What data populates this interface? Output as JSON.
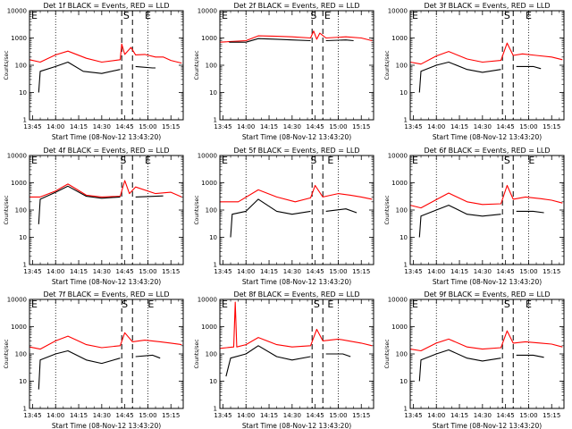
{
  "figure": {
    "xlabel": "Start Time (08-Nov-12 13:43:20)",
    "ylabel": "Counts/sec",
    "x_tick_labels": [
      "13:45",
      "14:00",
      "14:15",
      "14:30",
      "14:45",
      "15:00",
      "15:15"
    ],
    "y_tick_labels": [
      "1",
      "10",
      "100",
      "1000",
      "10000"
    ],
    "marker_labels": {
      "start": "S",
      "end": "E"
    },
    "colors": {
      "events": "#000000",
      "lld": "#ff0000",
      "axes": "#000000",
      "background": "#ffffff"
    }
  },
  "chart_data": [
    {
      "type": "line",
      "title": "Det 1f BLACK = Events, RED = LLD",
      "xlabel": "Start Time (08-Nov-12 13:43:20)",
      "ylabel": "Counts/sec",
      "x_range": [
        "13:43",
        "15:23"
      ],
      "ylim": [
        1,
        10000
      ],
      "log_y": true,
      "dotted_x": [
        "14:00",
        "15:00"
      ],
      "dashed_x": [
        "14:43",
        "14:50"
      ],
      "left_marker": "E",
      "markers": [
        {
          "label": "S",
          "x": "14:46"
        },
        {
          "label": "E",
          "x": "15:00"
        }
      ],
      "series": [
        {
          "name": "LLD",
          "color": "#ff0000",
          "x": [
            "13:43",
            "13:50",
            "14:00",
            "14:08",
            "14:20",
            "14:30",
            "14:42",
            "14:43",
            "14:45",
            "14:49",
            "14:52",
            "14:58",
            "15:05",
            "15:10",
            "15:15",
            "15:22"
          ],
          "values": [
            160,
            130,
            240,
            330,
            180,
            130,
            160,
            600,
            250,
            450,
            240,
            250,
            200,
            200,
            150,
            120
          ]
        },
        {
          "name": "Events",
          "x": [
            "13:49",
            "13:50",
            "14:00",
            "14:08",
            "14:18",
            "14:30",
            "14:42"
          ],
          "values": [
            10,
            60,
            90,
            130,
            60,
            50,
            70
          ]
        },
        {
          "name": "Events",
          "x": [
            "14:52",
            "15:03",
            "15:05"
          ],
          "values": [
            90,
            80,
            80
          ]
        }
      ]
    },
    {
      "type": "line",
      "title": "Det 2f BLACK = Events, RED = LLD",
      "xlabel": "Start Time (08-Nov-12 13:43:20)",
      "ylabel": "Counts/sec",
      "x_range": [
        "13:43",
        "15:23"
      ],
      "ylim": [
        1,
        10000
      ],
      "log_y": true,
      "dotted_x": [
        "14:00",
        "15:00"
      ],
      "dashed_x": [
        "14:43",
        "14:50"
      ],
      "left_marker": "E",
      "markers": [
        {
          "label": "S",
          "x": "14:44"
        },
        {
          "label": "E",
          "x": "14:53"
        }
      ],
      "series": [
        {
          "name": "LLD",
          "color": "#ff0000",
          "x": [
            "13:43",
            "14:00",
            "14:08",
            "14:20",
            "14:30",
            "14:42",
            "14:44",
            "14:46",
            "14:48",
            "14:52",
            "15:05",
            "15:15",
            "15:22"
          ],
          "values": [
            700,
            800,
            1200,
            1150,
            1100,
            1000,
            1800,
            900,
            1500,
            1000,
            1100,
            1000,
            800
          ]
        },
        {
          "name": "Events",
          "x": [
            "13:49",
            "14:00",
            "14:08",
            "14:20",
            "14:30",
            "14:42"
          ],
          "values": [
            700,
            700,
            950,
            900,
            850,
            800
          ]
        },
        {
          "name": "Events",
          "x": [
            "14:52",
            "15:05",
            "15:10"
          ],
          "values": [
            800,
            850,
            800
          ]
        }
      ]
    },
    {
      "type": "line",
      "title": "Det 3f BLACK = Events, RED = LLD",
      "xlabel": "Start Time (08-Nov-12 13:43:20)",
      "ylabel": "Counts/sec",
      "x_range": [
        "13:43",
        "15:23"
      ],
      "ylim": [
        1,
        10000
      ],
      "log_y": true,
      "dotted_x": [
        "14:00",
        "15:00"
      ],
      "dashed_x": [
        "14:43",
        "14:50"
      ],
      "left_marker": "E",
      "markers": [
        {
          "label": "S",
          "x": "14:46"
        },
        {
          "label": "E",
          "x": "15:00"
        }
      ],
      "series": [
        {
          "name": "LLD",
          "color": "#ff0000",
          "x": [
            "13:43",
            "13:50",
            "14:00",
            "14:08",
            "14:20",
            "14:30",
            "14:42",
            "14:46",
            "14:50",
            "14:56",
            "15:05",
            "15:15",
            "15:22"
          ],
          "values": [
            130,
            110,
            220,
            320,
            170,
            130,
            150,
            650,
            230,
            260,
            230,
            200,
            160
          ]
        },
        {
          "name": "Events",
          "x": [
            "13:49",
            "13:50",
            "14:00",
            "14:08",
            "14:20",
            "14:30",
            "14:42"
          ],
          "values": [
            10,
            60,
            100,
            130,
            70,
            55,
            70
          ]
        },
        {
          "name": "Events",
          "x": [
            "14:52",
            "15:03",
            "15:08"
          ],
          "values": [
            90,
            90,
            75
          ]
        }
      ]
    },
    {
      "type": "line",
      "title": "Det 4f BLACK = Events, RED = LLD",
      "xlabel": "Start Time (08-Nov-12 13:43:20)",
      "ylabel": "Counts/sec",
      "x_range": [
        "13:43",
        "15:23"
      ],
      "ylim": [
        1,
        10000
      ],
      "log_y": true,
      "dotted_x": [
        "14:00",
        "15:00"
      ],
      "dashed_x": [
        "14:43",
        "14:50"
      ],
      "left_marker": "E",
      "markers": [
        {
          "label": "S",
          "x": "14:44"
        },
        {
          "label": "E",
          "x": "15:00"
        }
      ],
      "series": [
        {
          "name": "LLD",
          "color": "#ff0000",
          "x": [
            "13:43",
            "13:50",
            "14:00",
            "14:08",
            "14:20",
            "14:30",
            "14:42",
            "14:45",
            "14:48",
            "14:52",
            "15:05",
            "15:15",
            "15:22"
          ],
          "values": [
            300,
            300,
            500,
            900,
            350,
            300,
            320,
            1200,
            400,
            700,
            400,
            450,
            300
          ]
        },
        {
          "name": "Events",
          "x": [
            "13:49",
            "13:50",
            "14:00",
            "14:08",
            "14:20",
            "14:30",
            "14:42"
          ],
          "values": [
            30,
            250,
            450,
            750,
            320,
            270,
            300
          ]
        },
        {
          "name": "Events",
          "x": [
            "14:52",
            "15:05",
            "15:10"
          ],
          "values": [
            300,
            320,
            330
          ]
        }
      ]
    },
    {
      "type": "line",
      "title": "Det 5f BLACK = Events, RED = LLD",
      "xlabel": "Start Time (08-Nov-12 13:43:20)",
      "ylabel": "Counts/sec",
      "x_range": [
        "13:43",
        "15:23"
      ],
      "ylim": [
        1,
        10000
      ],
      "log_y": true,
      "dotted_x": [
        "14:00",
        "15:00"
      ],
      "dashed_x": [
        "14:43",
        "14:50"
      ],
      "left_marker": "E",
      "markers": [
        {
          "label": "S",
          "x": "14:44"
        },
        {
          "label": "E",
          "x": "14:55"
        }
      ],
      "series": [
        {
          "name": "LLD",
          "color": "#ff0000",
          "x": [
            "13:43",
            "13:55",
            "14:08",
            "14:20",
            "14:32",
            "14:42",
            "14:45",
            "14:50",
            "15:00",
            "15:08",
            "15:15",
            "15:22"
          ],
          "values": [
            200,
            200,
            550,
            300,
            200,
            280,
            800,
            300,
            400,
            350,
            300,
            250
          ]
        },
        {
          "name": "Events",
          "x": [
            "13:50",
            "13:51",
            "14:00",
            "14:08",
            "14:20",
            "14:30",
            "14:42"
          ],
          "values": [
            10,
            70,
            90,
            250,
            90,
            70,
            90
          ]
        },
        {
          "name": "Events",
          "x": [
            "14:52",
            "15:05",
            "15:12"
          ],
          "values": [
            90,
            110,
            80
          ]
        }
      ]
    },
    {
      "type": "line",
      "title": "Det 6f BLACK = Events, RED = LLD",
      "xlabel": "Start Time (08-Nov-12 13:43:20)",
      "ylabel": "Counts/sec",
      "x_range": [
        "13:43",
        "15:23"
      ],
      "ylim": [
        1,
        10000
      ],
      "log_y": true,
      "dotted_x": [
        "14:00",
        "15:00"
      ],
      "dashed_x": [
        "14:43",
        "14:50"
      ],
      "left_marker": "E",
      "markers": [
        {
          "label": "S",
          "x": "14:46"
        },
        {
          "label": "E",
          "x": "15:02"
        }
      ],
      "series": [
        {
          "name": "LLD",
          "color": "#ff0000",
          "x": [
            "13:43",
            "13:50",
            "14:00",
            "14:08",
            "14:20",
            "14:30",
            "14:42",
            "14:46",
            "14:50",
            "14:58",
            "15:08",
            "15:15",
            "15:22"
          ],
          "values": [
            150,
            120,
            240,
            420,
            200,
            160,
            170,
            800,
            250,
            300,
            260,
            230,
            180
          ]
        },
        {
          "name": "Events",
          "x": [
            "13:49",
            "13:50",
            "14:00",
            "14:08",
            "14:20",
            "14:30",
            "14:42"
          ],
          "values": [
            10,
            60,
            100,
            150,
            70,
            60,
            70
          ]
        },
        {
          "name": "Events",
          "x": [
            "14:52",
            "15:03",
            "15:10"
          ],
          "values": [
            90,
            90,
            80
          ]
        }
      ]
    },
    {
      "type": "line",
      "title": "Det 7f BLACK = Events, RED = LLD",
      "xlabel": "Start Time (08-Nov-12 13:43:20)",
      "ylabel": "Counts/sec",
      "x_range": [
        "13:43",
        "15:23"
      ],
      "ylim": [
        1,
        10000
      ],
      "log_y": true,
      "dotted_x": [
        "14:00",
        "15:00"
      ],
      "dashed_x": [
        "14:43",
        "14:50"
      ],
      "left_marker": "E",
      "markers": [
        {
          "label": "S",
          "x": "14:45"
        },
        {
          "label": "E",
          "x": "15:02"
        }
      ],
      "series": [
        {
          "name": "LLD",
          "color": "#ff0000",
          "x": [
            "13:43",
            "13:50",
            "14:00",
            "14:08",
            "14:20",
            "14:30",
            "14:42",
            "14:45",
            "14:50",
            "14:58",
            "15:08",
            "15:15",
            "15:22"
          ],
          "values": [
            180,
            150,
            300,
            450,
            220,
            170,
            200,
            600,
            280,
            320,
            280,
            250,
            220
          ]
        },
        {
          "name": "Events",
          "x": [
            "13:49",
            "13:50",
            "14:00",
            "14:08",
            "14:20",
            "14:30",
            "14:42"
          ],
          "values": [
            5,
            60,
            100,
            130,
            60,
            45,
            70
          ]
        },
        {
          "name": "Events",
          "x": [
            "14:52",
            "15:03",
            "15:08"
          ],
          "values": [
            80,
            90,
            70
          ]
        }
      ]
    },
    {
      "type": "line",
      "title": "Det 8f BLACK = Events, RED = LLD",
      "xlabel": "Start Time (08-Nov-12 13:43:20)",
      "ylabel": "Counts/sec",
      "x_range": [
        "13:43",
        "15:23"
      ],
      "ylim": [
        1,
        10000
      ],
      "log_y": true,
      "dotted_x": [
        "14:00",
        "15:00"
      ],
      "dashed_x": [
        "14:43",
        "14:50"
      ],
      "left_marker": "E",
      "markers": [
        {
          "label": "S",
          "x": "14:46"
        },
        {
          "label": "E",
          "x": "14:55"
        }
      ],
      "series": [
        {
          "name": "LLD",
          "color": "#ff0000",
          "x": [
            "13:43",
            "13:52",
            "13:53",
            "13:54",
            "14:00",
            "14:08",
            "14:20",
            "14:30",
            "14:42",
            "14:46",
            "14:50",
            "15:00",
            "15:15",
            "15:22"
          ],
          "values": [
            160,
            180,
            8000,
            180,
            220,
            400,
            220,
            180,
            200,
            800,
            300,
            350,
            250,
            200
          ]
        },
        {
          "name": "Events",
          "x": [
            "13:47",
            "13:50",
            "14:00",
            "14:08",
            "14:20",
            "14:30",
            "14:42"
          ],
          "values": [
            15,
            70,
            100,
            200,
            80,
            60,
            80
          ]
        },
        {
          "name": "Events",
          "x": [
            "14:52",
            "15:03",
            "15:08"
          ],
          "values": [
            100,
            100,
            80
          ]
        }
      ]
    },
    {
      "type": "line",
      "title": "Det 9f BLACK = Events, RED = LLD",
      "xlabel": "Start Time (08-Nov-12 13:43:20)",
      "ylabel": "Counts/sec",
      "x_range": [
        "13:43",
        "15:23"
      ],
      "ylim": [
        1,
        10000
      ],
      "log_y": true,
      "dotted_x": [
        "14:00",
        "15:00"
      ],
      "dashed_x": [
        "14:43",
        "14:50"
      ],
      "left_marker": "E",
      "markers": [
        {
          "label": "S",
          "x": "14:46"
        },
        {
          "label": "E",
          "x": "15:00"
        }
      ],
      "series": [
        {
          "name": "LLD",
          "color": "#ff0000",
          "x": [
            "13:43",
            "13:50",
            "14:00",
            "14:08",
            "14:20",
            "14:30",
            "14:42",
            "14:46",
            "14:50",
            "14:58",
            "15:08",
            "15:15",
            "15:22"
          ],
          "values": [
            150,
            130,
            250,
            350,
            180,
            150,
            170,
            700,
            250,
            280,
            250,
            230,
            180
          ]
        },
        {
          "name": "Events",
          "x": [
            "13:49",
            "13:50",
            "14:00",
            "14:08",
            "14:20",
            "14:30",
            "14:42"
          ],
          "values": [
            10,
            60,
            100,
            140,
            70,
            55,
            70
          ]
        },
        {
          "name": "Events",
          "x": [
            "14:52",
            "15:03",
            "15:10"
          ],
          "values": [
            90,
            90,
            75
          ]
        }
      ]
    }
  ]
}
